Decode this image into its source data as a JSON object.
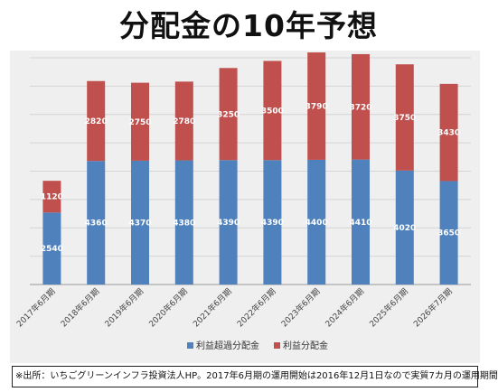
{
  "title": "分配金の10年予想",
  "note": "※出所：いちごグリーンインフラ投資法人HP。2017年6月期の運用開始は2016年12月1日なので実質7カ月の運用期間",
  "chart_data": {
    "type": "bar",
    "stacked": true,
    "categories": [
      "2017年6月期",
      "2018年6月期",
      "2019年6月期",
      "2020年6月期",
      "2021年6月期",
      "2022年6月期",
      "2023年6月期",
      "2024年6月期",
      "2025年6月期",
      "2026年7月期"
    ],
    "series": [
      {
        "name": "利益超過分配金",
        "color": "#4f81bd",
        "values": [
          2540,
          4360,
          4370,
          4380,
          4390,
          4390,
          4400,
          4410,
          4020,
          3650
        ]
      },
      {
        "name": "利益分配金",
        "color": "#c0504d",
        "values": [
          1120,
          2820,
          2750,
          2780,
          3250,
          3500,
          3790,
          3720,
          3750,
          3430
        ]
      }
    ],
    "ylim": [
      0,
      8000
    ],
    "grid": true,
    "legend": "bottom"
  }
}
